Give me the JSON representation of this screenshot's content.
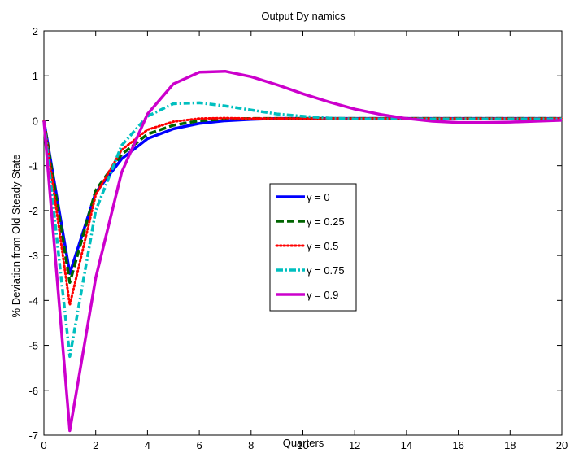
{
  "chart_data": {
    "type": "line",
    "title": "Output Dy namics",
    "xlabel": "Quarters",
    "ylabel": "% Deviation from Old Steady State",
    "xlim": [
      0,
      20
    ],
    "ylim": [
      -7,
      2
    ],
    "xticks": [
      0,
      2,
      4,
      6,
      8,
      10,
      12,
      14,
      16,
      18,
      20
    ],
    "yticks": [
      -7,
      -6,
      -5,
      -4,
      -3,
      -2,
      -1,
      0,
      1,
      2
    ],
    "grid": false,
    "legend_position": "center",
    "x": [
      0,
      1,
      2,
      3,
      4,
      5,
      6,
      7,
      8,
      9,
      10,
      11,
      12,
      13,
      14,
      15,
      16,
      17,
      18,
      19,
      20
    ],
    "series": [
      {
        "name": "γ = 0",
        "color": "#0000ff",
        "style": "solid",
        "values": [
          0,
          -3.4,
          -1.6,
          -0.85,
          -0.4,
          -0.18,
          -0.06,
          0.0,
          0.03,
          0.05,
          0.05,
          0.05,
          0.05,
          0.05,
          0.05,
          0.05,
          0.05,
          0.05,
          0.05,
          0.05,
          0.05
        ]
      },
      {
        "name": "γ = 0.25",
        "color": "#006400",
        "style": "dashed",
        "values": [
          0,
          -3.6,
          -1.55,
          -0.75,
          -0.3,
          -0.1,
          0.0,
          0.04,
          0.05,
          0.05,
          0.05,
          0.05,
          0.05,
          0.05,
          0.05,
          0.05,
          0.05,
          0.05,
          0.05,
          0.05,
          0.05
        ]
      },
      {
        "name": "γ = 0.5",
        "color": "#ff0000",
        "style": "dotted",
        "values": [
          0,
          -4.1,
          -1.65,
          -0.65,
          -0.2,
          -0.02,
          0.05,
          0.06,
          0.05,
          0.05,
          0.05,
          0.05,
          0.05,
          0.05,
          0.05,
          0.05,
          0.05,
          0.05,
          0.05,
          0.05,
          0.05
        ]
      },
      {
        "name": "γ = 0.75",
        "color": "#00bfbf",
        "style": "dashdot",
        "values": [
          0,
          -5.25,
          -2.0,
          -0.55,
          0.1,
          0.38,
          0.4,
          0.33,
          0.24,
          0.15,
          0.1,
          0.06,
          0.04,
          0.04,
          0.04,
          0.04,
          0.04,
          0.04,
          0.04,
          0.04,
          0.04
        ]
      },
      {
        "name": "γ = 0.9",
        "color": "#cc00cc",
        "style": "solid",
        "values": [
          0,
          -6.9,
          -3.5,
          -1.15,
          0.15,
          0.82,
          1.08,
          1.1,
          0.98,
          0.8,
          0.6,
          0.42,
          0.26,
          0.14,
          0.05,
          -0.01,
          -0.04,
          -0.04,
          -0.03,
          -0.01,
          0.01
        ]
      }
    ]
  }
}
